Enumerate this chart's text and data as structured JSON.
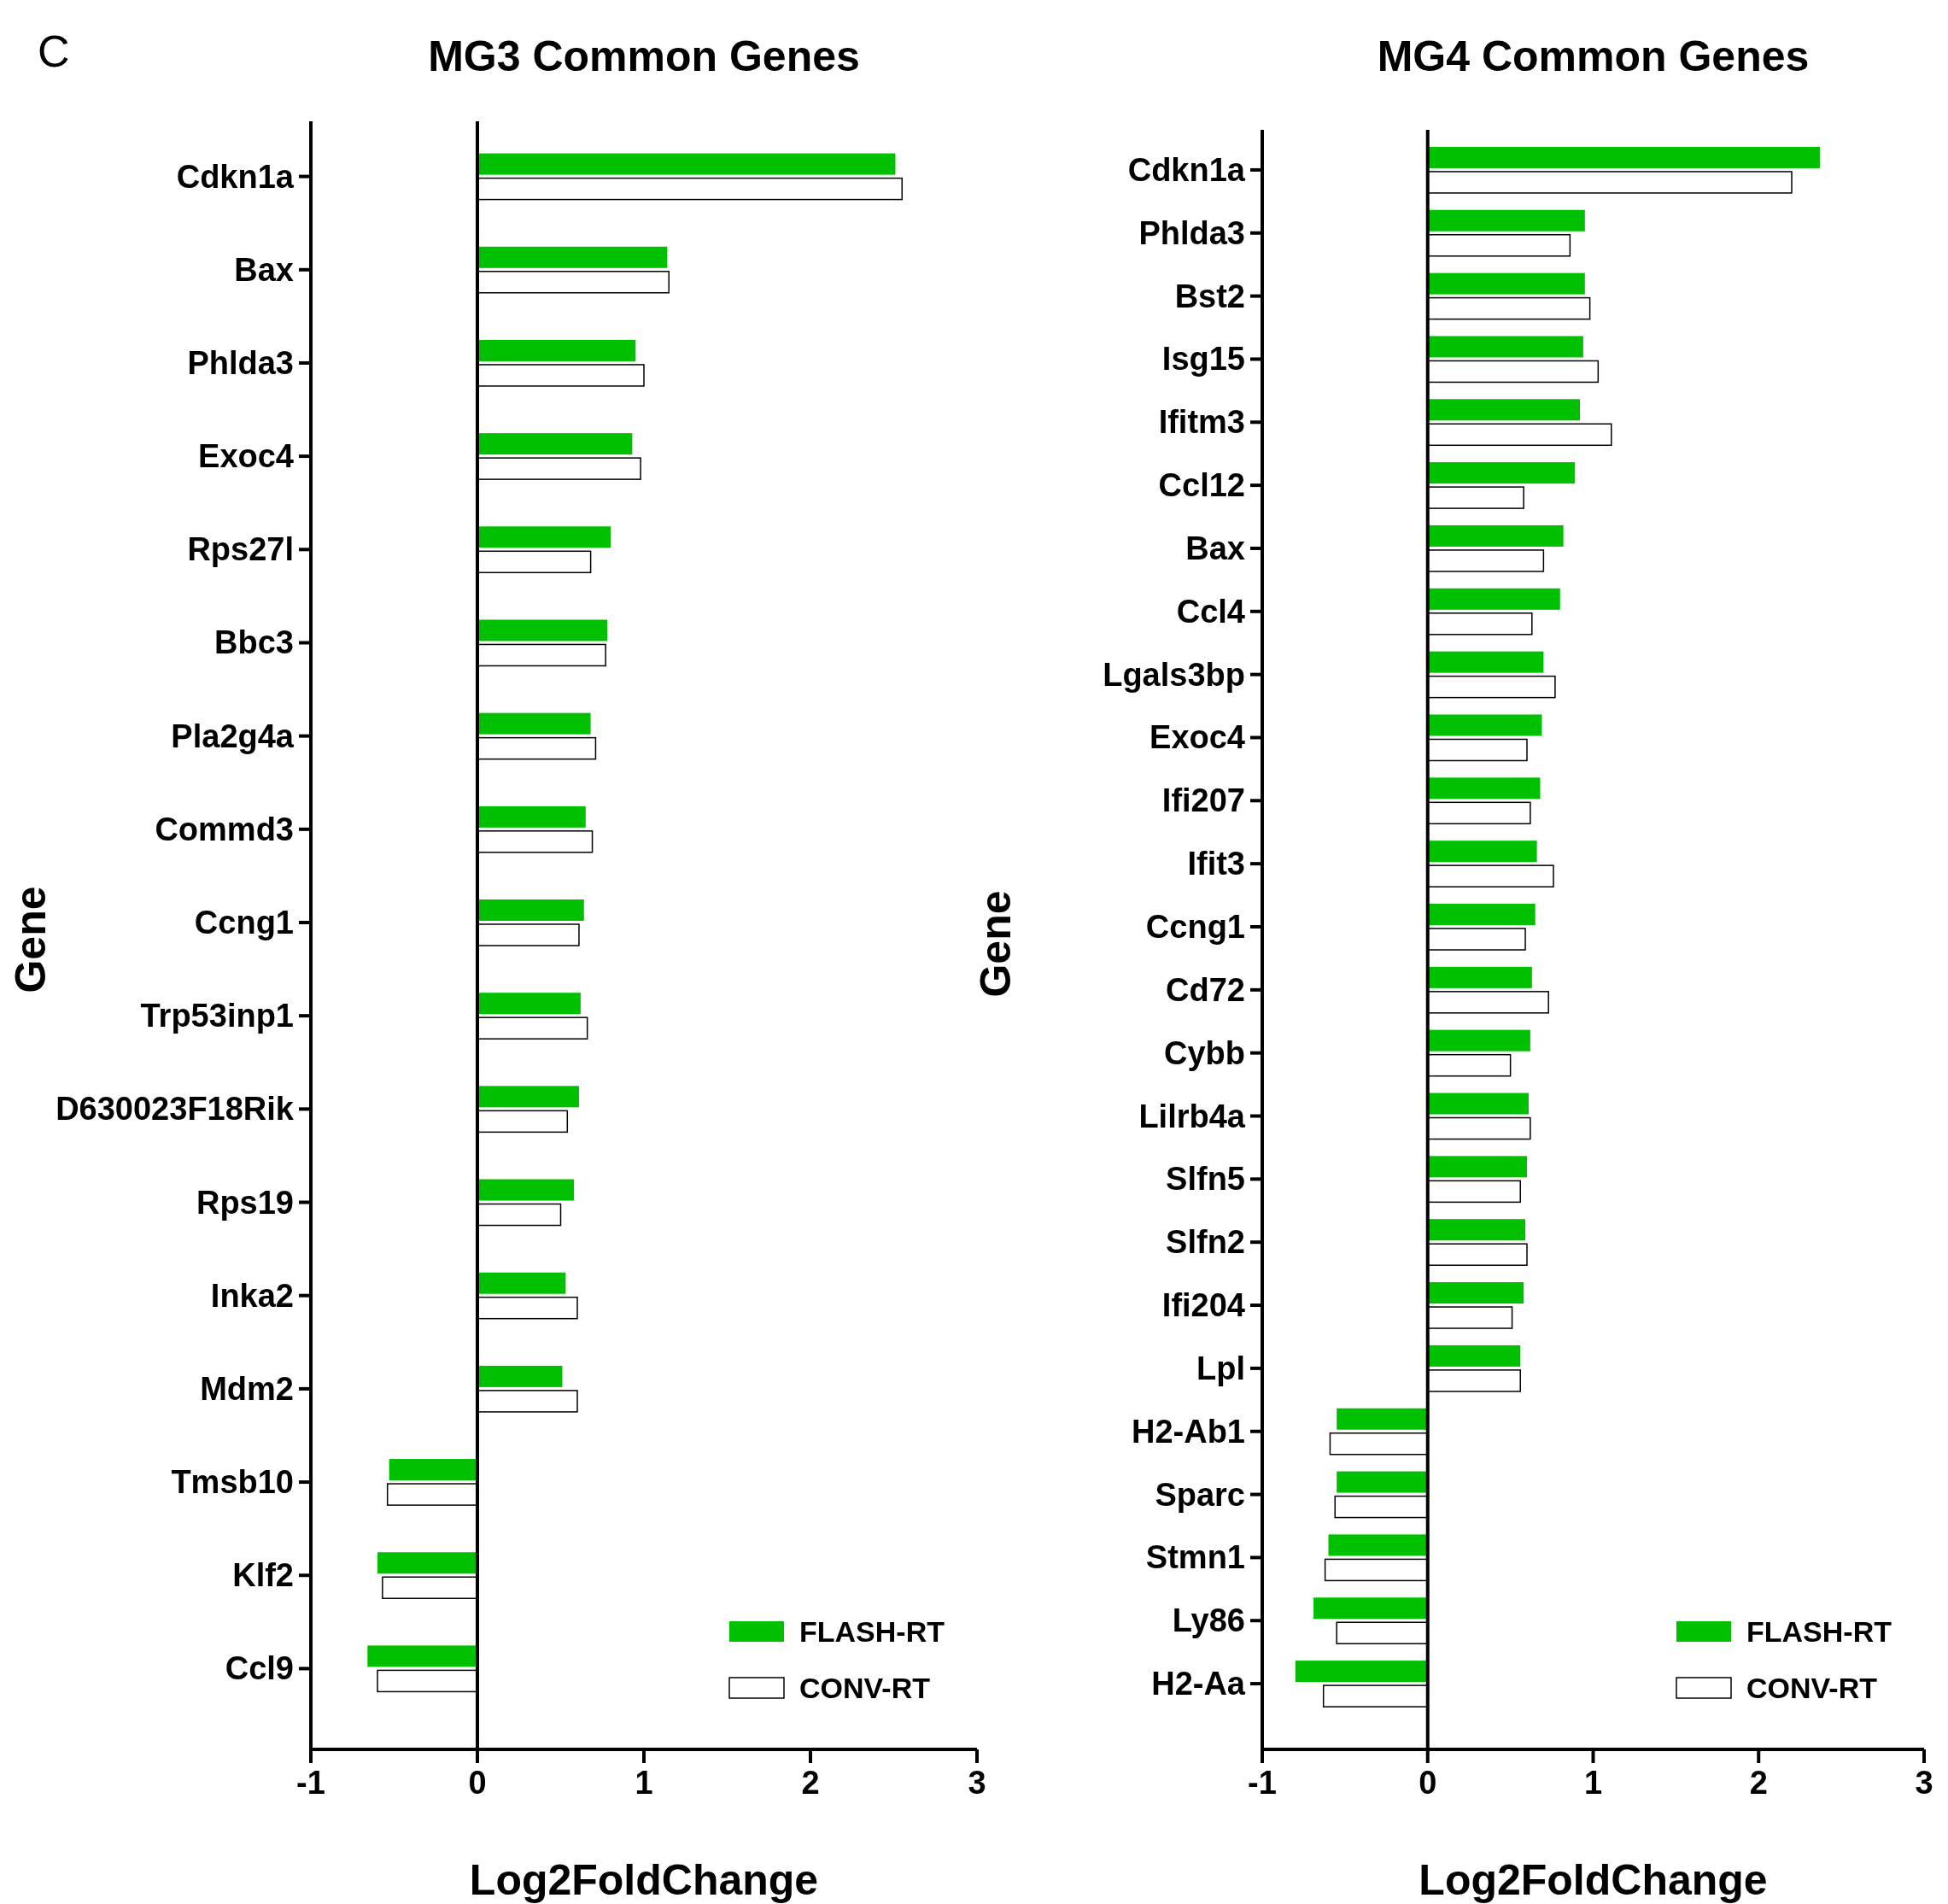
{
  "chart_data": [
    {
      "type": "bar",
      "orientation": "horizontal",
      "title": "MG3 Common Genes",
      "xlabel": "Log2FoldChange",
      "ylabel": "Gene",
      "annotations": [
        "C"
      ],
      "categories": [
        "Cdkn1a",
        "Bax",
        "Phlda3",
        "Exoc4",
        "Rps27l",
        "Bbc3",
        "Pla2g4a",
        "Commd3",
        "Ccng1",
        "Trp53inp1",
        "D630023F18Rik",
        "Rps19",
        "Inka2",
        "Mdm2",
        "Tmsb10",
        "Klf2",
        "Ccl9"
      ],
      "series": [
        {
          "name": "FLASH-RT",
          "color": "#00c000",
          "values": [
            2.51,
            1.14,
            0.95,
            0.93,
            0.8,
            0.78,
            0.68,
            0.65,
            0.64,
            0.62,
            0.61,
            0.58,
            0.53,
            0.51,
            -0.53,
            -0.6,
            -0.66
          ]
        },
        {
          "name": "CONV-RT",
          "color": "#ffffff",
          "values": [
            2.55,
            1.15,
            1.0,
            0.98,
            0.68,
            0.77,
            0.71,
            0.69,
            0.61,
            0.66,
            0.54,
            0.5,
            0.6,
            0.6,
            -0.54,
            -0.57,
            -0.6
          ]
        }
      ],
      "xlim": [
        -1,
        3
      ],
      "xticks": [
        -1,
        0,
        1,
        2,
        3
      ],
      "ref_lines": [
        {
          "axis": "x",
          "value": 0
        }
      ],
      "legend": "bottom right"
    },
    {
      "type": "bar",
      "orientation": "horizontal",
      "title": "MG4 Common Genes",
      "xlabel": "Log2FoldChange",
      "ylabel": "Gene",
      "categories": [
        "Cdkn1a",
        "Phlda3",
        "Bst2",
        "Isg15",
        "Ifitm3",
        "Ccl12",
        "Bax",
        "Ccl4",
        "Lgals3bp",
        "Exoc4",
        "Ifi207",
        "Ifit3",
        "Ccng1",
        "Cd72",
        "Cybb",
        "Lilrb4a",
        "Slfn5",
        "Slfn2",
        "Ifi204",
        "Lpl",
        "H2-Ab1",
        "Sparc",
        "Stmn1",
        "Ly86",
        "H2-Aa"
      ],
      "series": [
        {
          "name": "FLASH-RT",
          "color": "#00c000",
          "values": [
            2.37,
            0.95,
            0.95,
            0.94,
            0.92,
            0.89,
            0.82,
            0.8,
            0.7,
            0.69,
            0.68,
            0.66,
            0.65,
            0.63,
            0.62,
            0.61,
            0.6,
            0.59,
            0.58,
            0.56,
            -0.55,
            -0.55,
            -0.6,
            -0.69,
            -0.8
          ]
        },
        {
          "name": "CONV-RT",
          "color": "#ffffff",
          "values": [
            2.2,
            0.86,
            0.98,
            1.03,
            1.11,
            0.58,
            0.7,
            0.63,
            0.77,
            0.6,
            0.62,
            0.76,
            0.59,
            0.73,
            0.5,
            0.62,
            0.56,
            0.6,
            0.51,
            0.56,
            -0.59,
            -0.56,
            -0.62,
            -0.55,
            -0.63
          ]
        }
      ],
      "xlim": [
        -1,
        3
      ],
      "xticks": [
        -1,
        0,
        1,
        2,
        3
      ],
      "ref_lines": [
        {
          "axis": "x",
          "value": 0
        }
      ],
      "legend": "bottom right"
    }
  ]
}
